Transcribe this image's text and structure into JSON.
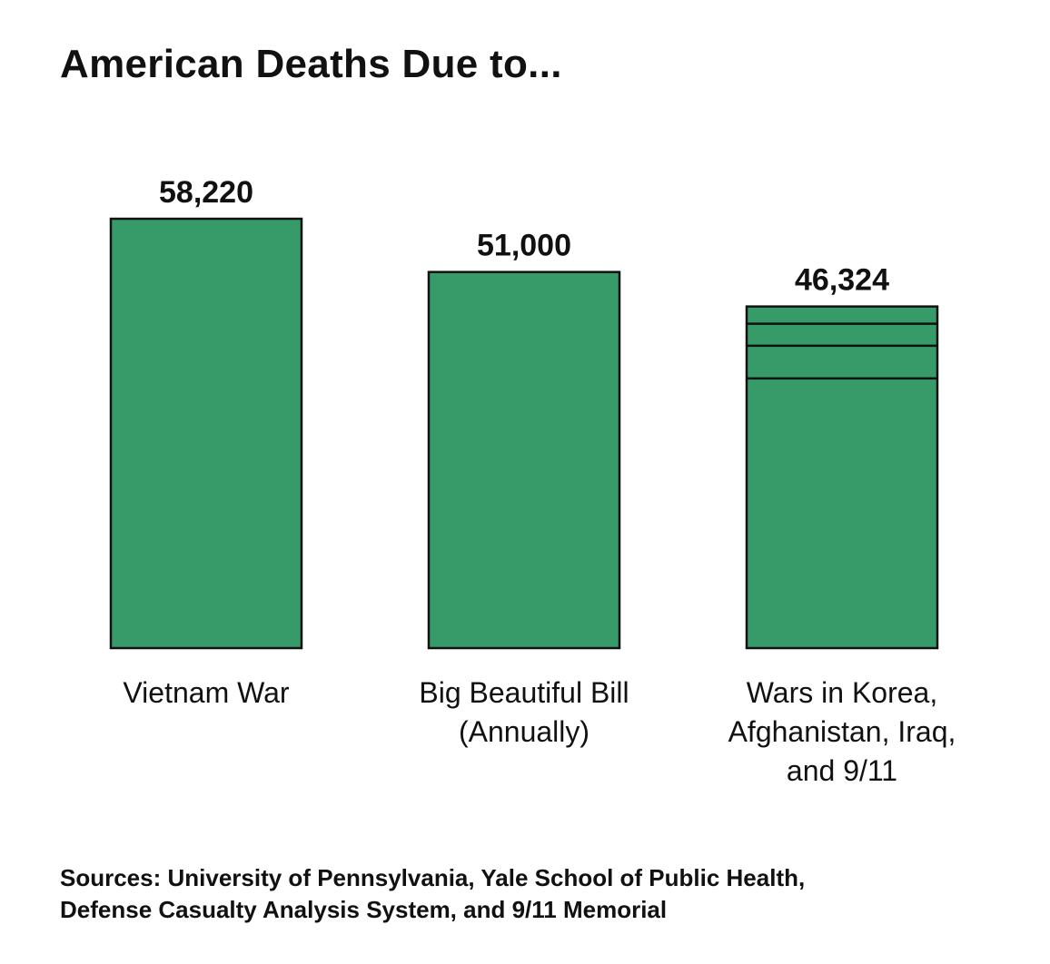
{
  "chart_data": {
    "type": "bar",
    "title": "American Deaths Due to...",
    "categories": [
      [
        "Vietnam War"
      ],
      [
        "Big Beautiful Bill",
        "(Annually)"
      ],
      [
        "Wars in Korea,",
        "Afghanistan, Iraq,",
        "and 9/11"
      ]
    ],
    "values": [
      58220,
      51000,
      46324
    ],
    "value_labels": [
      "58,220",
      "51,000",
      "46,324"
    ],
    "stacked_segments": [
      [
        58220
      ],
      [
        51000
      ],
      [
        36574,
        4431,
        2977,
        2342
      ]
    ],
    "ylim": [
      0,
      58220
    ],
    "xlabel": "",
    "ylabel": "",
    "grid": false,
    "bar_color": "#379a69",
    "outline_color": "#111111"
  },
  "sources": {
    "line1": "Sources: University of Pennsylvania, Yale School of Public Health,",
    "line2": "Defense Casualty Analysis System, and 9/11 Memorial"
  }
}
